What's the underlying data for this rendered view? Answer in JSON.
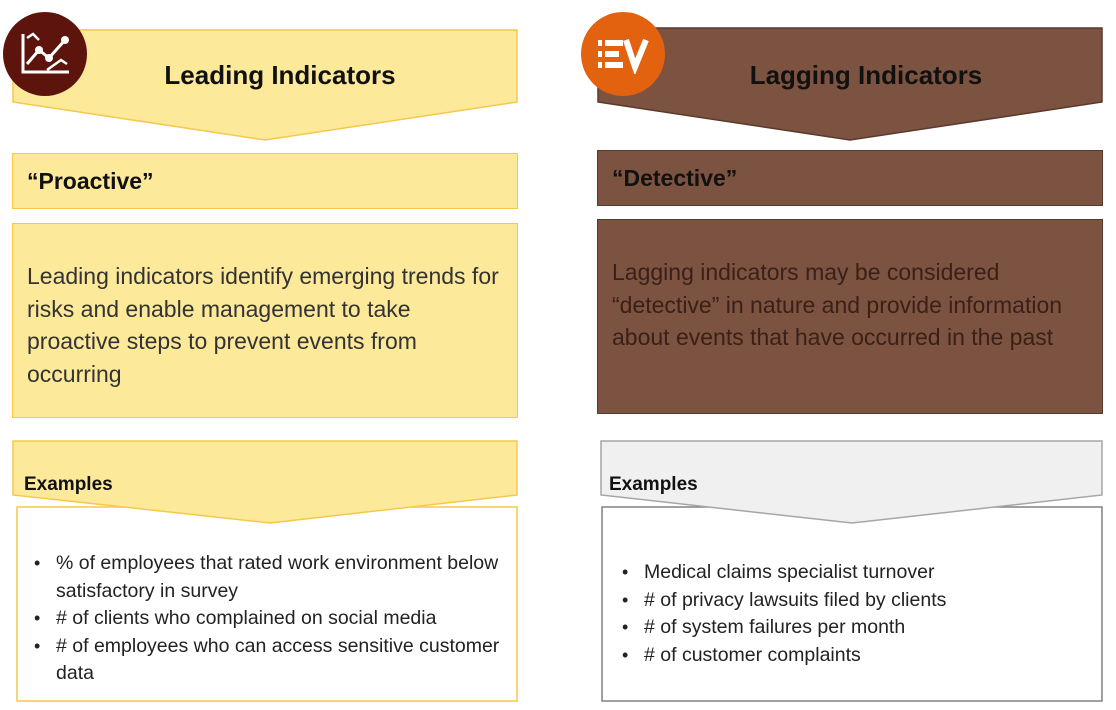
{
  "colors": {
    "leading_fill": "#fde99a",
    "leading_border": "#f5c84c",
    "leading_icon_bg": "#5c140c",
    "lagging_fill": "#7c5240",
    "lagging_border": "#5a3a2c",
    "lagging_text": "#3a2018",
    "lagging_icon_bg": "#e2620f",
    "examples_gray": "#f0f0f0",
    "examples_gray_border": "#a6a6a6"
  },
  "leading": {
    "icon": "trend-chart-icon",
    "title": "Leading Indicators",
    "label": "“Proactive”",
    "description": "Leading indicators identify emerging trends for risks and enable management to take proactive steps to prevent events from occurring",
    "examples_label": "Examples",
    "examples": [
      "% of employees that rated work environment below satisfactory in survey",
      "# of clients who complained on social media",
      "# of employees who can access sensitive customer data"
    ]
  },
  "lagging": {
    "icon": "ev-logo-icon",
    "title": "Lagging Indicators",
    "label": "“Detective”",
    "description": "Lagging indicators may be considered “detective” in nature and provide information about events that have occurred in the past",
    "examples_label": "Examples",
    "examples": [
      "Medical claims specialist turnover",
      "# of privacy lawsuits filed by clients",
      "# of system failures per month",
      "# of customer complaints"
    ]
  }
}
